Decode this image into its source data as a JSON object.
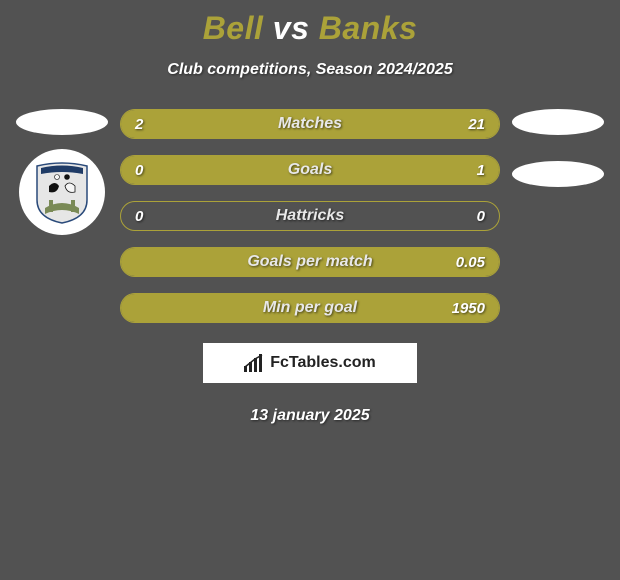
{
  "title": {
    "player1": "Bell",
    "vs": "vs",
    "player2": "Banks"
  },
  "subtitle": "Club competitions, Season 2024/2025",
  "colors": {
    "accent": "#aba239",
    "background": "#525252",
    "bar_border": "#aba239",
    "fill_left": "#aba239",
    "fill_right": "#aba239",
    "text": "#ffffff"
  },
  "bars": [
    {
      "label": "Matches",
      "left_val": "2",
      "right_val": "21",
      "left_pct": 8.7,
      "right_pct": 91.3
    },
    {
      "label": "Goals",
      "left_val": "0",
      "right_val": "1",
      "left_pct": 0,
      "right_pct": 100
    },
    {
      "label": "Hattricks",
      "left_val": "0",
      "right_val": "0",
      "left_pct": 0,
      "right_pct": 0
    },
    {
      "label": "Goals per match",
      "left_val": "",
      "right_val": "0.05",
      "left_pct": 0,
      "right_pct": 100
    },
    {
      "label": "Min per goal",
      "left_val": "",
      "right_val": "1950",
      "left_pct": 0,
      "right_pct": 100
    }
  ],
  "brand": "FcTables.com",
  "date": "13 january 2025",
  "crest": {
    "shield_fill": "#e6e6e6",
    "shield_stroke": "#2a4a7a",
    "banner_fill": "#1f3b66",
    "arch_fill": "#7a8a56"
  }
}
